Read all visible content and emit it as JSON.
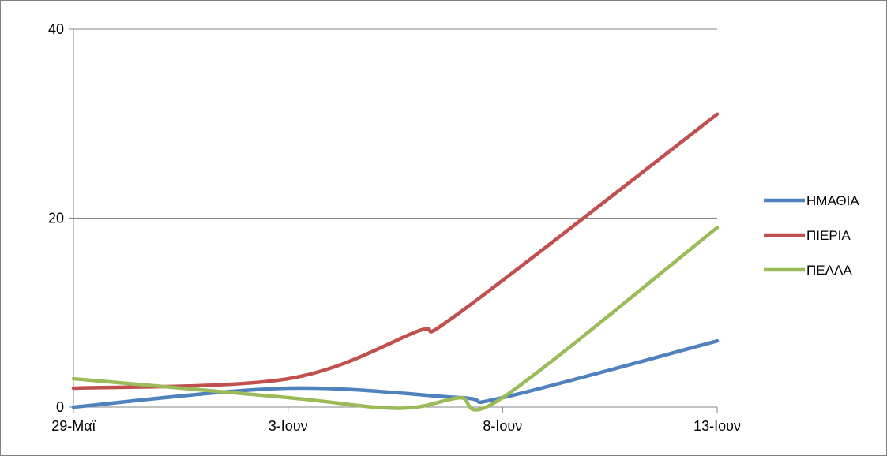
{
  "chart_data": {
    "type": "line",
    "title": "",
    "xlabel": "",
    "ylabel": "",
    "categories": [
      "29-Μαϊ",
      "3-Ιουν",
      "8-Ιουν",
      "13-Ιουν"
    ],
    "x": [
      0,
      1,
      2,
      3,
      4,
      5,
      6,
      7,
      8,
      9,
      10,
      11,
      12,
      13,
      14,
      15
    ],
    "ylim": [
      0,
      40
    ],
    "yticks": [
      0,
      20,
      40
    ],
    "grid": true,
    "legend": "right",
    "smooth": true,
    "series": [
      {
        "name": "ΗΜΑΘΙΑ",
        "color": "#4f81bd",
        "values": [
          0,
          null,
          null,
          null,
          null,
          2,
          null,
          null,
          null,
          1,
          1,
          null,
          null,
          null,
          null,
          7
        ]
      },
      {
        "name": "ΠΙΕΡΙΑ",
        "color": "#c0504d",
        "values": [
          2,
          null,
          null,
          null,
          null,
          3,
          null,
          null,
          8,
          10,
          null,
          null,
          null,
          null,
          null,
          31
        ]
      },
      {
        "name": "ΠΕΛΛΑ",
        "color": "#9bbb59",
        "values": [
          3,
          null,
          null,
          null,
          null,
          1,
          null,
          0,
          0,
          1,
          1,
          null,
          null,
          null,
          null,
          19
        ]
      }
    ]
  }
}
